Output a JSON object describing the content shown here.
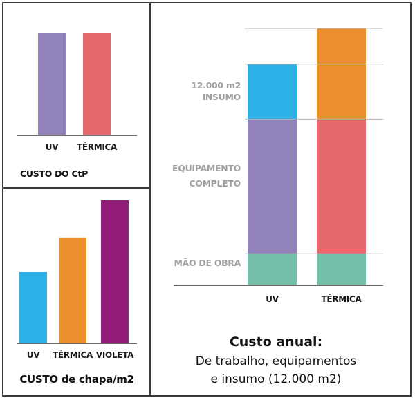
{
  "chart_data": [
    {
      "id": "ctp",
      "type": "bar",
      "title": "CUSTO DO CtP",
      "categories": [
        "UV",
        "TÉRMICA"
      ],
      "values": [
        100,
        100
      ],
      "colors": [
        "#9183b9",
        "#e5696a"
      ],
      "ylim": [
        0,
        100
      ],
      "xlabel": "",
      "ylabel": "",
      "grid": false,
      "legend": "none"
    },
    {
      "id": "chapa",
      "type": "bar",
      "title": "CUSTO de chapa/m2",
      "categories": [
        "UV",
        "TÉRMICA",
        "VIOLETA"
      ],
      "values": [
        50,
        74,
        100
      ],
      "colors": [
        "#2db0e6",
        "#ea8f2c",
        "#921e79"
      ],
      "ylim": [
        0,
        100
      ],
      "xlabel": "",
      "ylabel": "",
      "grid": false,
      "legend": "none"
    },
    {
      "id": "anual",
      "type": "bar",
      "stacked": true,
      "title": "Custo anual:",
      "subtitle": [
        "De trabalho, equipamentos",
        "e insumo (12.000 m2)"
      ],
      "categories": [
        "UV",
        "TÉRMICA"
      ],
      "series": [
        {
          "name": "MÃO DE OBRA",
          "label_lines": [
            "MÃO DE OBRA"
          ],
          "values": [
            12.3,
            12.3
          ],
          "colors": [
            "#74bfaa",
            "#74bfaa"
          ]
        },
        {
          "name": "EQUIPAMENTO COMPLETO",
          "label_lines": [
            "EQUIPAMENTO",
            "COMPLETO"
          ],
          "values": [
            52.4,
            52.4
          ],
          "colors": [
            "#9183b9",
            "#e5696a"
          ]
        },
        {
          "name": "12.000 m2 INSUMO",
          "label_lines": [
            "12.000 m2",
            "INSUMO"
          ],
          "values": [
            21.4,
            35.3
          ],
          "colors": [
            "#2db0e6",
            "#ea8f2c"
          ]
        }
      ],
      "gridlines": [
        12.3,
        64.7,
        86.1,
        100
      ],
      "ylim": [
        0,
        100
      ],
      "xlabel": "",
      "ylabel": "",
      "grid": true,
      "legend": "left"
    }
  ],
  "colors": {
    "axis": "#3a3a3a",
    "gridline": "#b5b5b5",
    "segment_label": "#a0a0a0",
    "border": "#3a3a3a"
  }
}
